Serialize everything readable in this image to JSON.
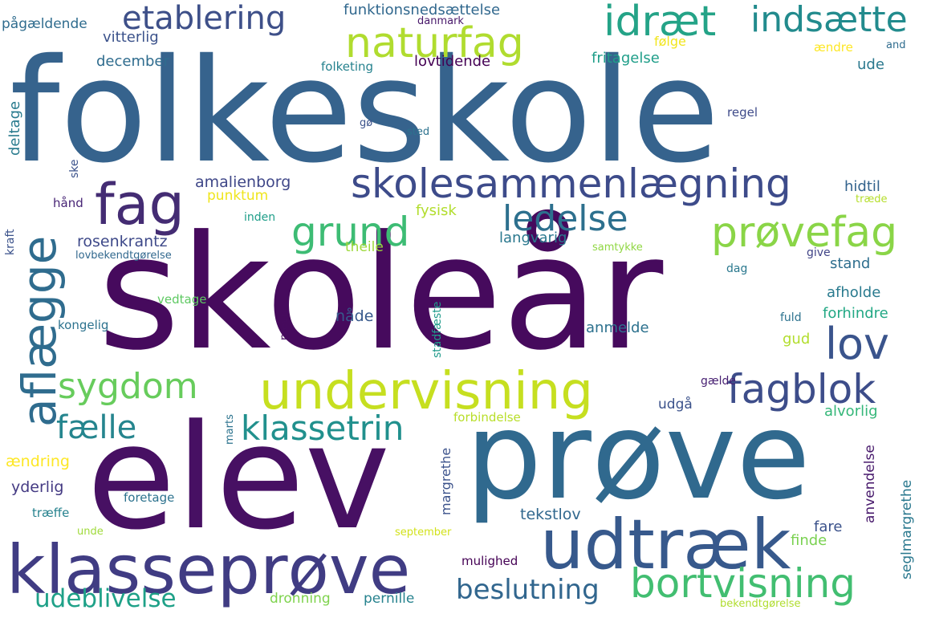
{
  "words": [
    {
      "text": "folkeskole",
      "color": "#36638d"
    },
    {
      "text": "skoleår",
      "color": "#460a5d"
    },
    {
      "text": "elev",
      "color": "#471063"
    },
    {
      "text": "prøve",
      "color": "#30698e"
    },
    {
      "text": "klasseprøve",
      "color": "#403c83"
    },
    {
      "text": "udtræk",
      "color": "#37598c"
    },
    {
      "text": "undervisning",
      "color": "#c6df20"
    },
    {
      "text": "skolesammenlægning",
      "color": "#3d4b8a"
    },
    {
      "text": "naturfag",
      "color": "#b0dc2f"
    },
    {
      "text": "etablering",
      "color": "#3e5089"
    },
    {
      "text": "fag",
      "color": "#442c73"
    },
    {
      "text": "idræt",
      "color": "#24a387"
    },
    {
      "text": "indsætte",
      "color": "#228b8d"
    },
    {
      "text": "aflægge",
      "color": "#2f6c8e"
    },
    {
      "text": "prøvefag",
      "color": "#8ad547"
    },
    {
      "text": "grund",
      "color": "#3dbc74"
    },
    {
      "text": "ledelse",
      "color": "#2d708e"
    },
    {
      "text": "lov",
      "color": "#3a548c"
    },
    {
      "text": "sygdom",
      "color": "#67cc5c"
    },
    {
      "text": "fagblok",
      "color": "#3d4d8a"
    },
    {
      "text": "bortvisning",
      "color": "#42be71"
    },
    {
      "text": "klassetrin",
      "color": "#21908d"
    },
    {
      "text": "fælle",
      "color": "#25858e"
    },
    {
      "text": "udeblivelse",
      "color": "#1fa188"
    },
    {
      "text": "beslutning",
      "color": "#31668e"
    },
    {
      "text": "amalienborg",
      "color": "#3f4788"
    },
    {
      "text": "punktum",
      "color": "#efe51c"
    },
    {
      "text": "fysisk",
      "color": "#b2dd2d"
    },
    {
      "text": "rosenkrantz",
      "color": "#3e4989"
    },
    {
      "text": "theile",
      "color": "#9dd93b"
    },
    {
      "text": "langvarig",
      "color": "#2a788e"
    },
    {
      "text": "hidtil",
      "color": "#33638d"
    },
    {
      "text": "stand",
      "color": "#2e6e8e"
    },
    {
      "text": "afholde",
      "color": "#297a8e"
    },
    {
      "text": "forhindre",
      "color": "#22a884"
    },
    {
      "text": "anmelde",
      "color": "#2c718e"
    },
    {
      "text": "nåde",
      "color": "#37598c"
    },
    {
      "text": "gud",
      "color": "#b2dd2d"
    },
    {
      "text": "udgå",
      "color": "#3b528b"
    },
    {
      "text": "alvorlig",
      "color": "#35b779"
    },
    {
      "text": "forbindelse",
      "color": "#b8de29"
    },
    {
      "text": "funktionsnedsættelse",
      "color": "#31688e"
    },
    {
      "text": "danmark",
      "color": "#48186a"
    },
    {
      "text": "pågældende",
      "color": "#2f6c8e"
    },
    {
      "text": "vitterlig",
      "color": "#3b528b"
    },
    {
      "text": "følge",
      "color": "#f1e51d"
    },
    {
      "text": "december",
      "color": "#2f6c8e"
    },
    {
      "text": "lovtidende",
      "color": "#440154"
    },
    {
      "text": "fritagelse",
      "color": "#1f9e89"
    },
    {
      "text": "ændre",
      "color": "#fde725"
    },
    {
      "text": "and",
      "color": "#2f6c8e"
    },
    {
      "text": "ude",
      "color": "#2a788e"
    },
    {
      "text": "folketing",
      "color": "#26828e"
    },
    {
      "text": "regel",
      "color": "#3e4a89"
    },
    {
      "text": "gø",
      "color": "#3b528b"
    },
    {
      "text": "sted",
      "color": "#2c728e"
    },
    {
      "text": "deltage",
      "color": "#297b8e"
    },
    {
      "text": "ske",
      "color": "#3b528b"
    },
    {
      "text": "hånd",
      "color": "#482576"
    },
    {
      "text": "træde",
      "color": "#b5de2b"
    },
    {
      "text": "kraft",
      "color": "#3b528b"
    },
    {
      "text": "inden",
      "color": "#1f9e89"
    },
    {
      "text": "lovbekendtgørelse",
      "color": "#31688e"
    },
    {
      "text": "samtykke",
      "color": "#90d743"
    },
    {
      "text": "give",
      "color": "#414487"
    },
    {
      "text": "dag",
      "color": "#2a788e"
    },
    {
      "text": "vedtage",
      "color": "#5ec962"
    },
    {
      "text": "kongelig",
      "color": "#2c728e"
    },
    {
      "text": "nævne",
      "color": "#460b5e"
    },
    {
      "text": "stadfæste",
      "color": "#1f9a8a"
    },
    {
      "text": "fuld",
      "color": "#2c728e"
    },
    {
      "text": "gælde",
      "color": "#482173"
    },
    {
      "text": "marts",
      "color": "#2c738e"
    },
    {
      "text": "ændring",
      "color": "#fde725"
    },
    {
      "text": "yderlig",
      "color": "#443a83"
    },
    {
      "text": "margrethe",
      "color": "#3b528b"
    },
    {
      "text": "anvendelse",
      "color": "#481a6c"
    },
    {
      "text": "seglmargrethe",
      "color": "#2a788e"
    },
    {
      "text": "foretage",
      "color": "#2c728e"
    },
    {
      "text": "træffe",
      "color": "#26828e"
    },
    {
      "text": "tekstlov",
      "color": "#31688e"
    },
    {
      "text": "fare",
      "color": "#3b528b"
    },
    {
      "text": "finde",
      "color": "#7ad151"
    },
    {
      "text": "unde",
      "color": "#9fda3a"
    },
    {
      "text": "september",
      "color": "#d2e21b"
    },
    {
      "text": "mulighed",
      "color": "#440154"
    },
    {
      "text": "dronning",
      "color": "#7fd34e"
    },
    {
      "text": "pernille",
      "color": "#26828e"
    },
    {
      "text": "bekendtgørelse",
      "color": "#b0dd2f"
    }
  ]
}
